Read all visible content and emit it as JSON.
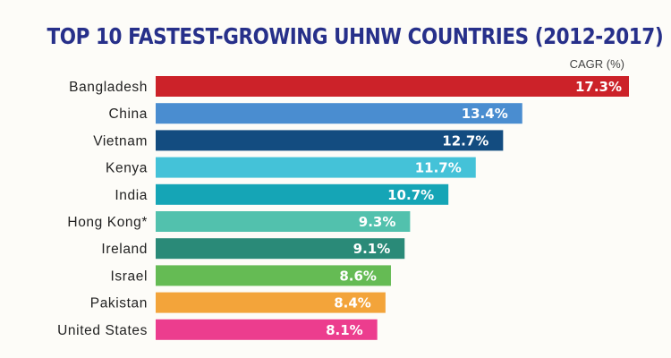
{
  "chart_data": {
    "type": "bar",
    "orientation": "horizontal",
    "title": "TOP 10 FASTEST-GROWING UHNW COUNTRIES (2012-2017)",
    "unit_label": "CAGR (%)",
    "xlabel": "",
    "ylabel": "",
    "grid": false,
    "xlim": [
      0,
      17.3
    ],
    "categories": [
      "Bangladesh",
      "China",
      "Vietnam",
      "Kenya",
      "India",
      "Hong Kong*",
      "Ireland",
      "Israel",
      "Pakistan",
      "United States"
    ],
    "values": [
      17.3,
      13.4,
      12.7,
      11.7,
      10.7,
      9.3,
      9.1,
      8.6,
      8.4,
      8.1
    ],
    "value_labels": [
      "17.3%",
      "13.4%",
      "12.7%",
      "11.7%",
      "10.7%",
      "9.3%",
      "9.1%",
      "8.6%",
      "8.4%",
      "8.1%"
    ],
    "colors": [
      "#cc2229",
      "#4a8dd0",
      "#134c80",
      "#44c2d8",
      "#15a5b6",
      "#52c1ad",
      "#2a8a78",
      "#65bb54",
      "#f3a43a",
      "#ec3d8e"
    ]
  }
}
